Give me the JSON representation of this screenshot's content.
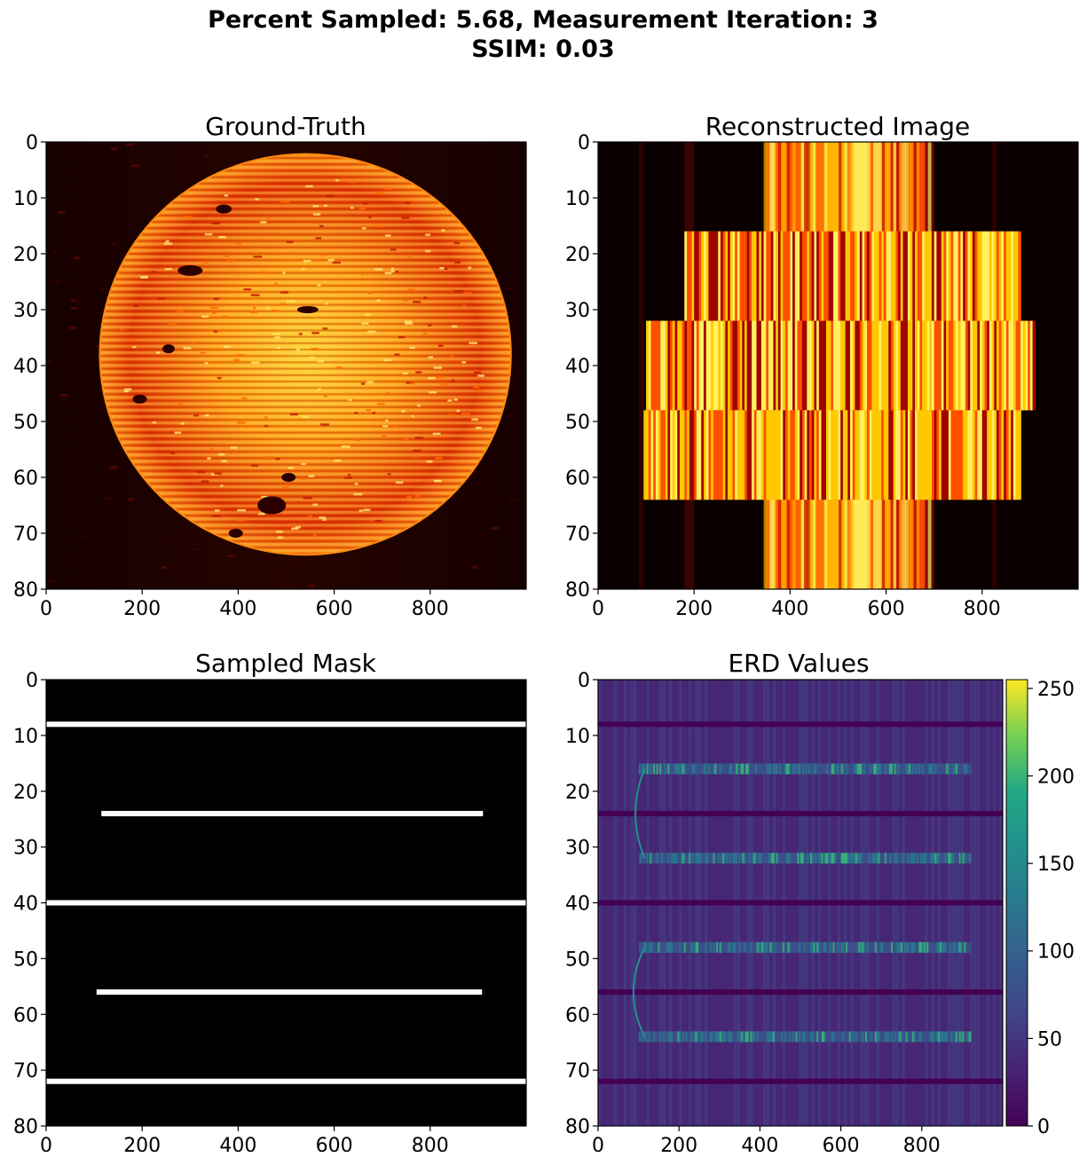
{
  "figure": {
    "title_line1": "Percent Sampled: 5.68, Measurement Iteration: 3",
    "title_line2": "SSIM: 0.03"
  },
  "chart_data": [
    {
      "type": "heatmap",
      "title": "Ground-Truth",
      "colormap": "hot",
      "xlim": [
        0,
        1000
      ],
      "ylim": [
        80,
        0
      ],
      "xticks": [
        0,
        200,
        400,
        600,
        800
      ],
      "yticks": [
        0,
        10,
        20,
        30,
        40,
        50,
        60,
        70,
        80
      ],
      "description_data": {
        "object": "disc",
        "center_x": 540,
        "center_y": 38,
        "radius_x": 430,
        "radius_y": 36
      }
    },
    {
      "type": "heatmap",
      "title": "Reconstructed Image",
      "colormap": "hot",
      "xlim": [
        0,
        1000
      ],
      "ylim": [
        80,
        0
      ],
      "xticks": [
        0,
        200,
        400,
        600,
        800
      ],
      "yticks": [
        0,
        10,
        20,
        30,
        40,
        50,
        60,
        70,
        80
      ],
      "bands": [
        {
          "y_start": 16,
          "y_end": 32,
          "x_start": 180,
          "x_end": 880
        },
        {
          "y_start": 32,
          "y_end": 48,
          "x_start": 100,
          "x_end": 910
        },
        {
          "y_start": 48,
          "y_end": 64,
          "x_start": 95,
          "x_end": 880
        }
      ]
    },
    {
      "type": "heatmap",
      "title": "Sampled Mask",
      "colormap": "gray",
      "xlim": [
        0,
        1000
      ],
      "ylim": [
        80,
        0
      ],
      "xticks": [
        0,
        200,
        400,
        600,
        800
      ],
      "yticks": [
        0,
        10,
        20,
        30,
        40,
        50,
        60,
        70,
        80
      ],
      "sampled_lines": [
        {
          "y": 8,
          "x_start": 0,
          "x_end": 1000
        },
        {
          "y": 24,
          "x_start": 115,
          "x_end": 910
        },
        {
          "y": 40,
          "x_start": 0,
          "x_end": 1000
        },
        {
          "y": 56,
          "x_start": 105,
          "x_end": 908
        },
        {
          "y": 72,
          "x_start": 0,
          "x_end": 1000
        }
      ]
    },
    {
      "type": "heatmap",
      "title": "ERD Values",
      "colormap": "viridis",
      "xlim": [
        0,
        1000
      ],
      "ylim": [
        80,
        0
      ],
      "xticks": [
        0,
        200,
        400,
        600,
        800
      ],
      "yticks": [
        0,
        10,
        20,
        30,
        40,
        50,
        60,
        70,
        80
      ],
      "colorbar": {
        "min": 0,
        "max": 255,
        "ticks": [
          0,
          50,
          100,
          150,
          200,
          250
        ]
      },
      "highlight_rows": [
        16,
        32,
        48,
        64
      ],
      "sampled_rows": [
        8,
        24,
        40,
        56,
        72
      ]
    }
  ]
}
